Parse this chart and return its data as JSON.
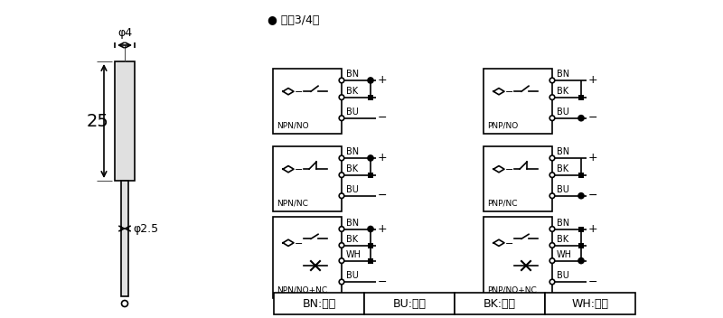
{
  "bg_color": "#ffffff",
  "title_text": "● 直涁3/4线",
  "phi4_label": "φ4",
  "phi25_label": "φ2.5",
  "dim25_label": "25",
  "legend_items": [
    "BN:棕色",
    "BU:兰色",
    "BK:黑色",
    "WH:白色"
  ],
  "lw": 1.2,
  "box_color": "#000000"
}
